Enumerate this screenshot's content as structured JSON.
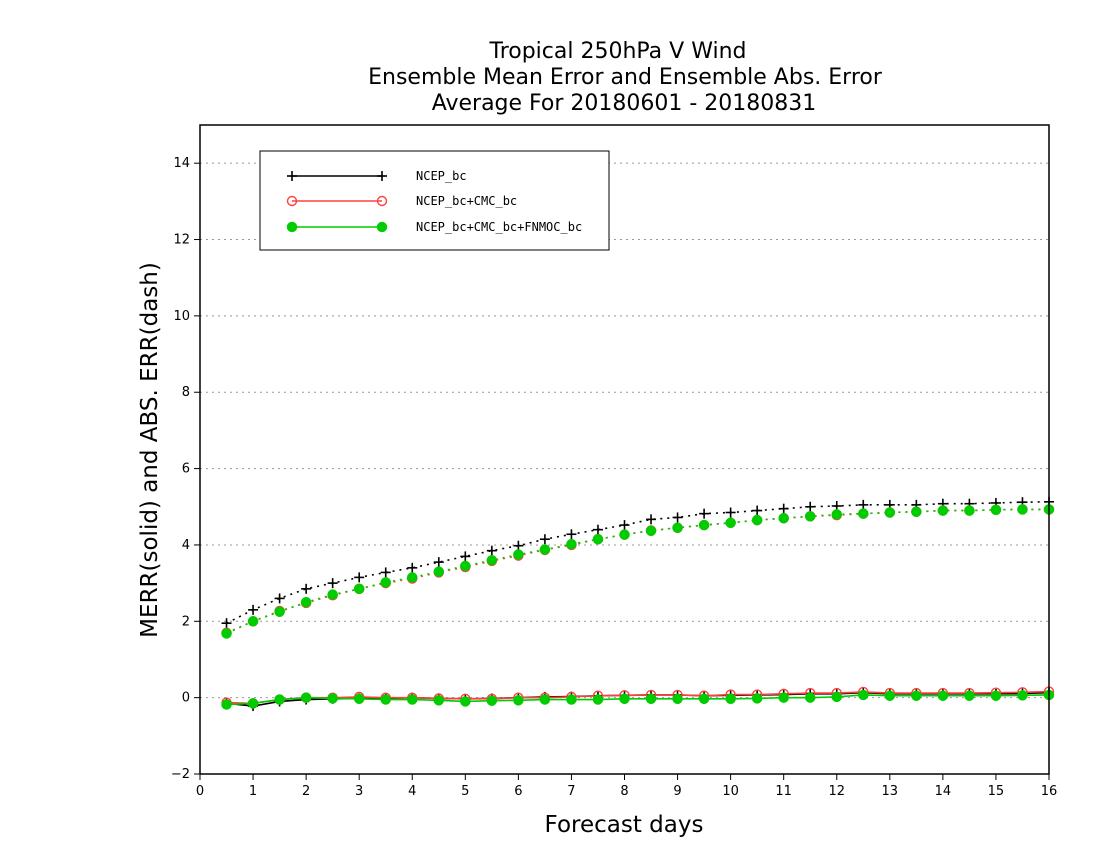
{
  "chart_data": {
    "type": "line",
    "title": [
      "Tropical 250hPa V Wind",
      "Ensemble Mean Error and Ensemble Abs. Error",
      "Average For 20180601 - 20180831"
    ],
    "xlabel": "Forecast days",
    "ylabel": "MERR(solid) and ABS. ERR(dash)",
    "xlim": [
      0,
      16
    ],
    "ylim": [
      -2,
      15
    ],
    "xticks": [
      0,
      1,
      2,
      3,
      4,
      5,
      6,
      7,
      8,
      9,
      10,
      11,
      12,
      13,
      14,
      15,
      16
    ],
    "yticks": [
      -2,
      0,
      2,
      4,
      6,
      8,
      10,
      12,
      14
    ],
    "grid": "horizontal dotted",
    "legend_position": "top-left",
    "x": [
      0.5,
      1,
      1.5,
      2,
      2.5,
      3,
      3.5,
      4,
      4.5,
      5,
      5.5,
      6,
      6.5,
      7,
      7.5,
      8,
      8.5,
      9,
      9.5,
      10,
      10.5,
      11,
      11.5,
      12,
      12.5,
      13,
      13.5,
      14,
      14.5,
      15,
      15.5,
      16
    ],
    "series": [
      {
        "name": "NCEP_bc",
        "color": "#000000",
        "marker": "plus",
        "merr": [
          -0.15,
          -0.22,
          -0.1,
          -0.05,
          -0.03,
          -0.02,
          -0.02,
          0.0,
          -0.02,
          -0.03,
          -0.02,
          0.0,
          0.02,
          0.03,
          0.05,
          0.06,
          0.07,
          0.07,
          0.05,
          0.06,
          0.07,
          0.08,
          0.1,
          0.1,
          0.13,
          0.1,
          0.1,
          0.1,
          0.1,
          0.1,
          0.11,
          0.13
        ],
        "abs_err": [
          1.95,
          2.3,
          2.6,
          2.85,
          3.0,
          3.15,
          3.28,
          3.4,
          3.55,
          3.7,
          3.85,
          3.98,
          4.15,
          4.28,
          4.4,
          4.52,
          4.67,
          4.72,
          4.82,
          4.85,
          4.9,
          4.95,
          5.0,
          5.02,
          5.05,
          5.05,
          5.05,
          5.08,
          5.08,
          5.1,
          5.12,
          5.13
        ]
      },
      {
        "name": "NCEP_bc+CMC_bc",
        "color": "#ff4040",
        "marker": "circle-open",
        "merr": [
          -0.13,
          -0.15,
          -0.05,
          0.0,
          0.0,
          0.02,
          0.0,
          0.0,
          -0.02,
          -0.03,
          -0.03,
          0.0,
          0.0,
          0.02,
          0.05,
          0.06,
          0.07,
          0.07,
          0.05,
          0.08,
          0.08,
          0.1,
          0.12,
          0.12,
          0.15,
          0.12,
          0.12,
          0.12,
          0.12,
          0.13,
          0.14,
          0.16
        ],
        "abs_err": [
          1.7,
          2.0,
          2.27,
          2.48,
          2.68,
          2.85,
          3.0,
          3.12,
          3.28,
          3.42,
          3.58,
          3.72,
          3.87,
          4.0,
          4.15,
          4.27,
          4.38,
          4.45,
          4.52,
          4.58,
          4.65,
          4.7,
          4.75,
          4.78,
          4.82,
          4.85,
          4.87,
          4.9,
          4.9,
          4.92,
          4.93,
          4.93
        ]
      },
      {
        "name": "NCEP_bc+CMC_bc+FNMOC_bc",
        "color": "#00cc00",
        "marker": "circle-filled",
        "merr": [
          -0.18,
          -0.15,
          -0.05,
          0.0,
          -0.02,
          -0.03,
          -0.05,
          -0.05,
          -0.07,
          -0.1,
          -0.08,
          -0.07,
          -0.05,
          -0.05,
          -0.05,
          -0.03,
          -0.03,
          -0.03,
          -0.03,
          -0.03,
          -0.02,
          0.0,
          0.0,
          0.02,
          0.07,
          0.05,
          0.05,
          0.05,
          0.05,
          0.05,
          0.06,
          0.07
        ],
        "abs_err": [
          1.68,
          2.0,
          2.25,
          2.5,
          2.7,
          2.85,
          3.02,
          3.15,
          3.3,
          3.45,
          3.6,
          3.75,
          3.88,
          4.02,
          4.15,
          4.27,
          4.37,
          4.45,
          4.52,
          4.58,
          4.65,
          4.7,
          4.75,
          4.8,
          4.82,
          4.85,
          4.87,
          4.9,
          4.9,
          4.92,
          4.93,
          4.93
        ]
      }
    ]
  }
}
